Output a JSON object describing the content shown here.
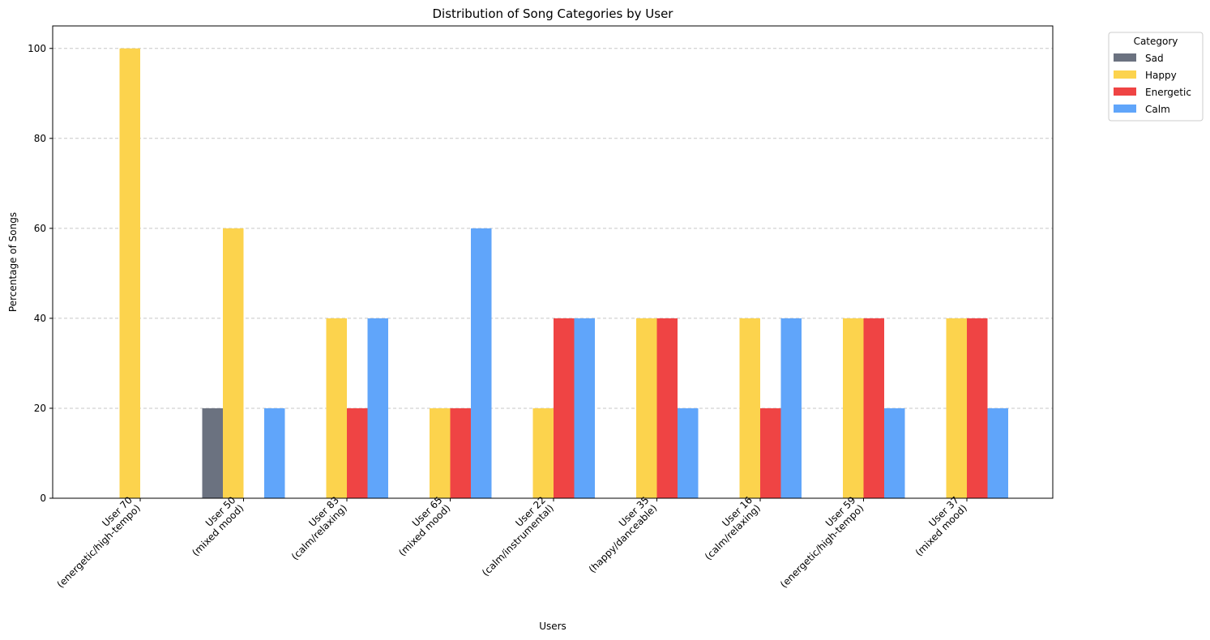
{
  "chart_data": {
    "type": "bar",
    "title": "Distribution of Song Categories by User",
    "xlabel": "Users",
    "ylabel": "Percentage of Songs",
    "ylim": [
      0,
      105
    ],
    "yticks": [
      0,
      20,
      40,
      60,
      80,
      100
    ],
    "grid": "y-dashed",
    "legend": {
      "title": "Category",
      "placement": "outside-top-right"
    },
    "categories": [
      [
        "User 70",
        "(energetic/high-tempo)"
      ],
      [
        "User 50",
        "(mixed mood)"
      ],
      [
        "User 83",
        "(calm/relaxing)"
      ],
      [
        "User 65",
        "(mixed mood)"
      ],
      [
        "User 22",
        "(calm/instrumental)"
      ],
      [
        "User 35",
        "(happy/danceable)"
      ],
      [
        "User 16",
        "(calm/relaxing)"
      ],
      [
        "User 59",
        "(energetic/high-tempo)"
      ],
      [
        "User 37",
        "(mixed mood)"
      ]
    ],
    "series": [
      {
        "name": "Sad",
        "color": "#6b7280",
        "values": [
          0,
          20,
          0,
          0,
          0,
          0,
          0,
          0,
          0
        ]
      },
      {
        "name": "Happy",
        "color": "#fcd34d",
        "values": [
          100,
          60,
          40,
          20,
          20,
          40,
          40,
          40,
          40
        ]
      },
      {
        "name": "Energetic",
        "color": "#ef4444",
        "values": [
          0,
          0,
          20,
          20,
          40,
          40,
          20,
          40,
          40
        ]
      },
      {
        "name": "Calm",
        "color": "#60a5fa",
        "values": [
          0,
          20,
          40,
          60,
          40,
          20,
          40,
          20,
          20
        ]
      }
    ]
  }
}
